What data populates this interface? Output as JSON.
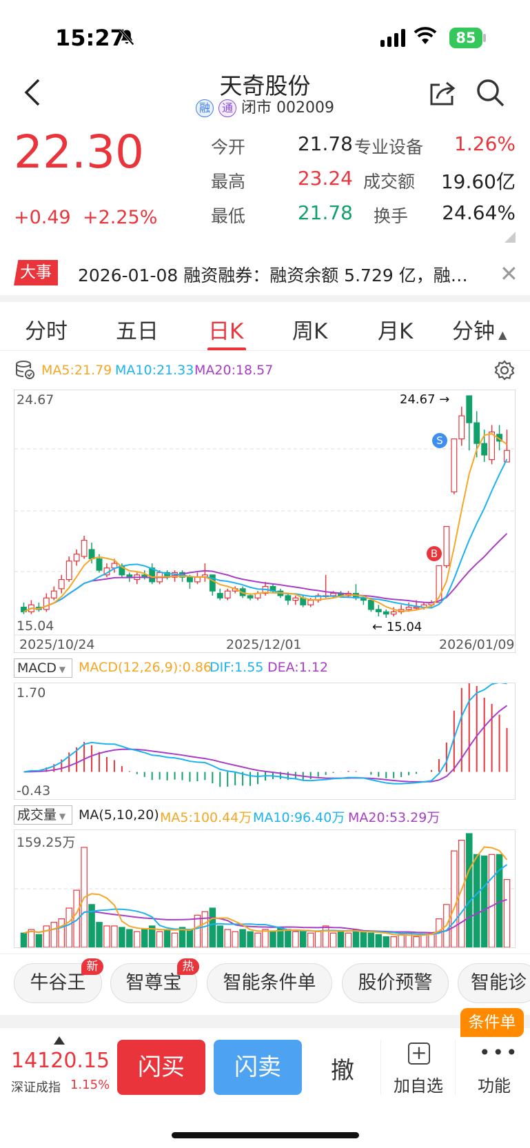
{
  "status_bar": {
    "time": "15:27",
    "battery": "85"
  },
  "header": {
    "title": "天奇股份",
    "tag1": "融",
    "tag2": "通",
    "status": "闭市 002009"
  },
  "quote": {
    "price": "22.30",
    "change": "+0.49",
    "change_pct": "+2.25%",
    "open_label": "今开",
    "open": "21.78",
    "high_label": "最高",
    "high": "23.24",
    "low_label": "最低",
    "low": "21.78",
    "sector_label": "专业设备",
    "sector_pct": "1.26%",
    "amount_label": "成交额",
    "amount": "19.60亿",
    "turnover_label": "换手",
    "turnover": "24.64%"
  },
  "news": {
    "tag": "大事",
    "text": "2026-01-08 融资融券：融资余额 5.729 亿，融…"
  },
  "tabs": [
    "分时",
    "五日",
    "日K",
    "周K",
    "月K",
    "分钟"
  ],
  "kline": {
    "ma5": "MA5:21.79",
    "ma10": "MA10:21.33",
    "ma20": "MA20:18.57",
    "high_axis": "24.67",
    "low_axis": "15.04",
    "max_marker": "24.67",
    "min_marker": "15.04",
    "dates": [
      "2025/10/24",
      "2025/12/01",
      "2026/01/09"
    ],
    "sell_mark": "S",
    "buy_mark": "B"
  },
  "macd": {
    "selector": "MACD",
    "params": "MACD(12,26,9):0.86",
    "dif": "DIF:1.55",
    "dea": "DEA:1.12",
    "top": "1.70",
    "bottom": "-0.43"
  },
  "volume": {
    "selector": "成交量",
    "params": "MA(5,10,20)",
    "ma5": "MA5:100.44万",
    "ma10": "MA10:96.40万",
    "ma20": "MA20:53.29万",
    "top": "159.25万"
  },
  "tools": [
    {
      "label": "牛谷王",
      "badge": "新"
    },
    {
      "label": "智尊宝",
      "badge": "热"
    },
    {
      "label": "智能条件单",
      "badge": ""
    },
    {
      "label": "股价预警",
      "badge": ""
    },
    {
      "label": "智能诊",
      "badge": ""
    }
  ],
  "bottom": {
    "index_value": "14120.15",
    "index_name": "深证成指",
    "index_pct": "1.15%",
    "buy": "闪买",
    "sell": "闪卖",
    "cancel": "撤",
    "add": "加自选",
    "more": "功能",
    "cond_badge": "条件单"
  },
  "chart_data": {
    "type": "candlestick",
    "x_range": [
      "2025/10/24",
      "2026/01/09"
    ],
    "y_range": [
      15.04,
      24.67
    ],
    "high": 24.67,
    "low": 15.04,
    "close_last": 22.3,
    "ma": {
      "MA5": 21.79,
      "MA10": 21.33,
      "MA20": 18.57
    },
    "macd": {
      "MACD": 0.86,
      "DIF": 1.55,
      "DEA": 1.12,
      "range": [
        -0.43,
        1.7
      ]
    },
    "volume": {
      "max": "159.25万",
      "MA5": "100.44万",
      "MA10": "96.40万",
      "MA20": "53.29万"
    },
    "candles": [
      {
        "o": 15.5,
        "c": 15.3,
        "h": 15.7,
        "l": 15.2
      },
      {
        "o": 15.3,
        "c": 15.6,
        "h": 15.8,
        "l": 15.2
      },
      {
        "o": 15.5,
        "c": 15.4,
        "h": 15.7,
        "l": 15.3
      },
      {
        "o": 15.4,
        "c": 15.9,
        "h": 16.1,
        "l": 15.3
      },
      {
        "o": 15.9,
        "c": 16.2,
        "h": 16.4,
        "l": 15.8
      },
      {
        "o": 16.3,
        "c": 16.7,
        "h": 16.9,
        "l": 16.1
      },
      {
        "o": 16.7,
        "c": 17.5,
        "h": 17.7,
        "l": 16.6
      },
      {
        "o": 17.5,
        "c": 17.8,
        "h": 18.0,
        "l": 17.3
      },
      {
        "o": 17.7,
        "c": 18.4,
        "h": 18.6,
        "l": 17.6
      },
      {
        "o": 18.0,
        "c": 17.6,
        "h": 18.3,
        "l": 17.4
      },
      {
        "o": 17.6,
        "c": 17.1,
        "h": 17.8,
        "l": 17.0
      },
      {
        "o": 16.9,
        "c": 17.2,
        "h": 17.4,
        "l": 16.8
      },
      {
        "o": 17.2,
        "c": 17.4,
        "h": 17.6,
        "l": 17.0
      },
      {
        "o": 17.3,
        "c": 16.9,
        "h": 17.4,
        "l": 16.8
      },
      {
        "o": 16.9,
        "c": 16.8,
        "h": 17.0,
        "l": 16.6
      },
      {
        "o": 16.7,
        "c": 16.9,
        "h": 17.0,
        "l": 16.5
      },
      {
        "o": 16.9,
        "c": 16.8,
        "h": 17.1,
        "l": 16.7
      },
      {
        "o": 17.2,
        "c": 16.6,
        "h": 17.4,
        "l": 16.5
      },
      {
        "o": 16.6,
        "c": 17.0,
        "h": 17.1,
        "l": 16.5
      },
      {
        "o": 17.0,
        "c": 16.8,
        "h": 17.1,
        "l": 16.7
      },
      {
        "o": 16.8,
        "c": 17.0,
        "h": 17.1,
        "l": 16.6
      },
      {
        "o": 17.0,
        "c": 16.8,
        "h": 17.1,
        "l": 16.6
      },
      {
        "o": 16.8,
        "c": 16.6,
        "h": 16.9,
        "l": 16.3
      },
      {
        "o": 16.6,
        "c": 16.8,
        "h": 17.0,
        "l": 16.5
      },
      {
        "o": 16.8,
        "c": 16.9,
        "h": 17.4,
        "l": 16.6
      },
      {
        "o": 16.9,
        "c": 16.2,
        "h": 16.9,
        "l": 16.0
      },
      {
        "o": 16.1,
        "c": 15.9,
        "h": 16.3,
        "l": 15.8
      },
      {
        "o": 15.9,
        "c": 16.2,
        "h": 16.3,
        "l": 15.8
      },
      {
        "o": 16.2,
        "c": 16.3,
        "h": 16.4,
        "l": 16.1
      },
      {
        "o": 16.3,
        "c": 16.0,
        "h": 16.4,
        "l": 15.9
      },
      {
        "o": 16.0,
        "c": 15.9,
        "h": 16.1,
        "l": 15.8
      },
      {
        "o": 15.9,
        "c": 16.1,
        "h": 16.2,
        "l": 15.8
      },
      {
        "o": 16.1,
        "c": 16.4,
        "h": 16.6,
        "l": 16.0
      },
      {
        "o": 16.4,
        "c": 16.2,
        "h": 16.5,
        "l": 16.1
      },
      {
        "o": 16.2,
        "c": 16.0,
        "h": 16.3,
        "l": 15.9
      },
      {
        "o": 16.0,
        "c": 15.8,
        "h": 16.1,
        "l": 15.6
      },
      {
        "o": 15.8,
        "c": 15.9,
        "h": 16.0,
        "l": 15.6
      },
      {
        "o": 15.9,
        "c": 15.6,
        "h": 16.0,
        "l": 15.5
      },
      {
        "o": 15.6,
        "c": 15.8,
        "h": 15.9,
        "l": 15.5
      },
      {
        "o": 15.8,
        "c": 16.0,
        "h": 16.1,
        "l": 15.7
      },
      {
        "o": 16.0,
        "c": 16.0,
        "h": 16.9,
        "l": 15.9
      },
      {
        "o": 16.0,
        "c": 16.1,
        "h": 16.2,
        "l": 15.9
      },
      {
        "o": 16.1,
        "c": 16.0,
        "h": 16.2,
        "l": 15.9
      },
      {
        "o": 16.0,
        "c": 16.1,
        "h": 16.2,
        "l": 15.9
      },
      {
        "o": 16.1,
        "c": 15.9,
        "h": 16.5,
        "l": 15.8
      },
      {
        "o": 15.9,
        "c": 15.8,
        "h": 16.0,
        "l": 15.6
      },
      {
        "o": 15.8,
        "c": 15.4,
        "h": 15.9,
        "l": 15.3
      },
      {
        "o": 15.4,
        "c": 15.3,
        "h": 15.6,
        "l": 15.1
      },
      {
        "o": 15.3,
        "c": 15.2,
        "h": 15.4,
        "l": 15.04
      },
      {
        "o": 15.2,
        "c": 15.3,
        "h": 15.5,
        "l": 15.1
      },
      {
        "o": 15.3,
        "c": 15.4,
        "h": 15.6,
        "l": 15.2
      },
      {
        "o": 15.4,
        "c": 15.5,
        "h": 15.7,
        "l": 15.3
      },
      {
        "o": 15.5,
        "c": 15.5,
        "h": 15.8,
        "l": 15.4
      },
      {
        "o": 15.5,
        "c": 15.6,
        "h": 15.7,
        "l": 15.4
      },
      {
        "o": 15.6,
        "c": 15.7,
        "h": 15.8,
        "l": 15.5
      },
      {
        "o": 15.7,
        "c": 17.3,
        "h": 17.3,
        "l": 15.7
      },
      {
        "o": 17.3,
        "c": 19.0,
        "h": 19.0,
        "l": 17.2
      },
      {
        "o": 20.5,
        "c": 22.8,
        "h": 22.8,
        "l": 20.4
      },
      {
        "o": 22.8,
        "c": 23.8,
        "h": 24.2,
        "l": 22.5
      },
      {
        "o": 24.67,
        "c": 23.5,
        "h": 24.67,
        "l": 22.3
      },
      {
        "o": 23.5,
        "c": 22.6,
        "h": 24.0,
        "l": 22.0
      },
      {
        "o": 22.6,
        "c": 22.1,
        "h": 23.2,
        "l": 21.8
      },
      {
        "o": 21.9,
        "c": 23.1,
        "h": 23.4,
        "l": 21.7
      },
      {
        "o": 23.0,
        "c": 22.7,
        "h": 23.4,
        "l": 22.3
      },
      {
        "o": 21.8,
        "c": 22.3,
        "h": 23.2,
        "l": 21.8
      }
    ],
    "volumes": [
      20,
      25,
      18,
      30,
      35,
      40,
      55,
      80,
      140,
      60,
      35,
      30,
      30,
      28,
      25,
      22,
      25,
      30,
      22,
      25,
      20,
      28,
      25,
      45,
      50,
      55,
      30,
      25,
      22,
      25,
      22,
      20,
      25,
      22,
      28,
      25,
      22,
      22,
      20,
      22,
      30,
      20,
      22,
      20,
      25,
      22,
      20,
      18,
      15,
      15,
      18,
      20,
      15,
      18,
      20,
      40,
      60,
      135,
      150,
      159.25,
      130,
      128,
      130,
      130,
      95
    ]
  }
}
